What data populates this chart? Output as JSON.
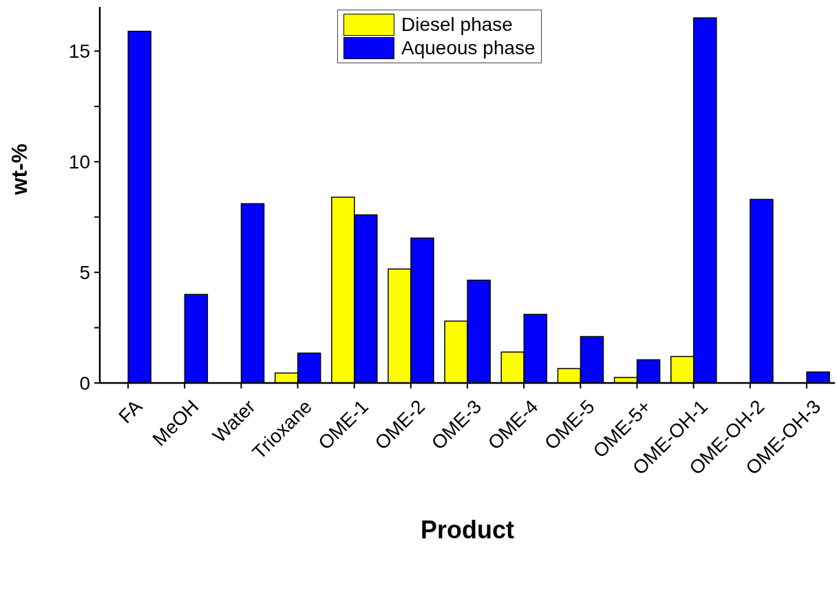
{
  "chart_data": {
    "type": "bar",
    "xlabel": "Product",
    "ylabel": "wt-%",
    "categories": [
      "FA",
      "MeOH",
      "Water",
      "Trioxane",
      "OME-1",
      "OME-2",
      "OME-3",
      "OME-4",
      "OME-5",
      "OME-5+",
      "OME-OH-1",
      "OME-OH-2",
      "OME-OH-3"
    ],
    "series": [
      {
        "name": "Diesel phase",
        "color": "#ffff00",
        "values": [
          null,
          null,
          null,
          0.45,
          8.4,
          5.15,
          2.8,
          1.4,
          0.65,
          0.25,
          1.2,
          null,
          null
        ]
      },
      {
        "name": "Aqueous phase",
        "color": "#0000ff",
        "values": [
          15.9,
          4.0,
          8.1,
          1.35,
          7.6,
          6.55,
          4.65,
          3.1,
          2.1,
          1.05,
          16.5,
          8.3,
          0.5
        ]
      }
    ],
    "ylim": [
      0,
      17
    ],
    "yticks": [
      0,
      {
        "value": 2.5,
        "label": null
      },
      5,
      {
        "value": 7.5,
        "label": null
      },
      10,
      {
        "value": 12.5,
        "label": null
      },
      15
    ],
    "grid": false,
    "legend": "top"
  }
}
